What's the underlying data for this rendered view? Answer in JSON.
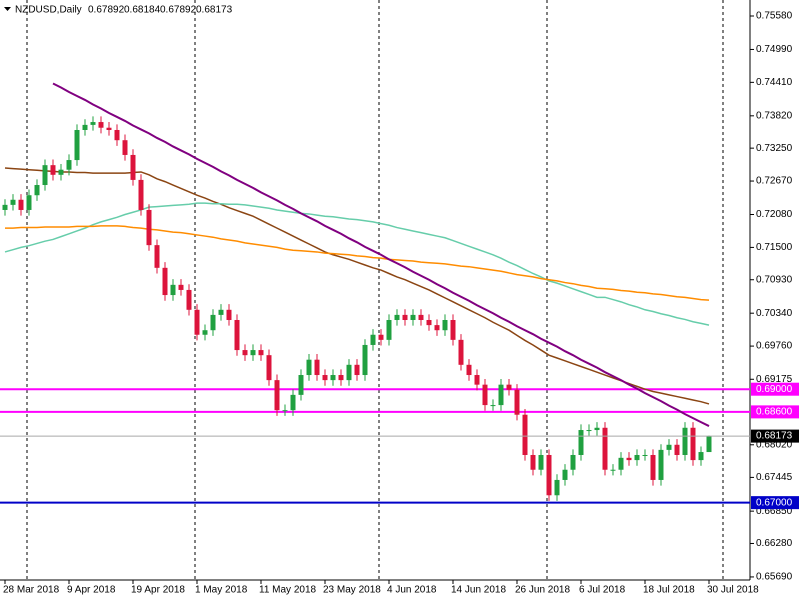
{
  "chart_data": {
    "type": "candlestick",
    "title": "NZDUSD,Daily",
    "categories": [
      "28 Mar 2018",
      null,
      null,
      null,
      null,
      null,
      null,
      null,
      "9 Apr 2018",
      null,
      null,
      null,
      null,
      null,
      null,
      null,
      "19 Apr 2018",
      null,
      null,
      null,
      null,
      null,
      null,
      null,
      "1 May 2018",
      null,
      null,
      null,
      null,
      null,
      null,
      null,
      "11 May 2018",
      null,
      null,
      null,
      null,
      null,
      null,
      null,
      "23 May 2018",
      null,
      null,
      null,
      null,
      null,
      null,
      null,
      "4 Jun 2018",
      null,
      null,
      null,
      null,
      null,
      null,
      null,
      "14 Jun 2018",
      null,
      null,
      null,
      null,
      null,
      null,
      null,
      "26 Jun 2018",
      null,
      null,
      null,
      null,
      null,
      null,
      null,
      "6 Jul 2018",
      null,
      null,
      null,
      null,
      null,
      null,
      null,
      "18 Jul 2018",
      null,
      null,
      null,
      null,
      null,
      null,
      null,
      "30 Jul 2018"
    ],
    "open": [
      0.7216,
      0.7225,
      0.7234,
      0.7216,
      0.7242,
      0.726,
      0.7295,
      0.7278,
      0.7287,
      0.7304,
      0.7357,
      0.7366,
      0.7371,
      0.7361,
      0.7357,
      0.7339,
      0.7313,
      0.7269,
      0.7216,
      0.7154,
      0.7114,
      0.7066,
      0.7084,
      0.7075,
      0.704,
      0.6996,
      0.7004,
      0.7031,
      0.704,
      0.7022,
      0.6969,
      0.696,
      0.6969,
      0.696,
      0.6916,
      0.6863,
      0.6863,
      0.689,
      0.6925,
      0.6952,
      0.6925,
      0.6916,
      0.6925,
      0.6916,
      0.6943,
      0.6925,
      0.6978,
      0.6996,
      0.6987,
      0.7022,
      0.7031,
      0.7022,
      0.7031,
      0.7022,
      0.7013,
      0.7004,
      0.7022,
      0.6987,
      0.6943,
      0.6925,
      0.6908,
      0.6872,
      0.6872,
      0.6908,
      0.6899,
      0.6855,
      0.6784,
      0.6758,
      0.6784,
      0.6713,
      0.674,
      0.6758,
      0.6784,
      0.6828,
      0.6828,
      0.6832,
      0.6758,
      0.6758,
      0.6779,
      0.6775,
      0.6784,
      0.6784,
      0.674,
      0.6793,
      0.6802,
      0.6784,
      0.6832,
      0.6775,
      0.67892
    ],
    "high": [
      0.7235,
      0.7244,
      0.7244,
      0.7252,
      0.727,
      0.7305,
      0.7305,
      0.7297,
      0.7314,
      0.7367,
      0.7376,
      0.7381,
      0.7381,
      0.7371,
      0.7367,
      0.7349,
      0.7323,
      0.7279,
      0.7226,
      0.7164,
      0.7124,
      0.7094,
      0.7094,
      0.7085,
      0.705,
      0.7014,
      0.7041,
      0.705,
      0.705,
      0.7032,
      0.6979,
      0.6979,
      0.6979,
      0.697,
      0.6926,
      0.6873,
      0.69,
      0.6935,
      0.6962,
      0.6962,
      0.6935,
      0.6935,
      0.6935,
      0.6953,
      0.6953,
      0.6988,
      0.7006,
      0.7006,
      0.7032,
      0.7041,
      0.7041,
      0.7041,
      0.7041,
      0.7032,
      0.7023,
      0.7032,
      0.7032,
      0.6997,
      0.6953,
      0.6935,
      0.6918,
      0.6882,
      0.6918,
      0.6918,
      0.6909,
      0.6865,
      0.6794,
      0.6794,
      0.6794,
      0.675,
      0.6768,
      0.6794,
      0.6838,
      0.6838,
      0.6842,
      0.6842,
      0.6768,
      0.6789,
      0.6789,
      0.6794,
      0.6794,
      0.6794,
      0.6803,
      0.6812,
      0.6812,
      0.6842,
      0.6842,
      0.6799,
      0.68184
    ],
    "low": [
      0.7206,
      0.7215,
      0.7206,
      0.7206,
      0.7232,
      0.725,
      0.7268,
      0.7268,
      0.7277,
      0.7294,
      0.7347,
      0.7356,
      0.7351,
      0.7347,
      0.7329,
      0.7303,
      0.7259,
      0.7206,
      0.7144,
      0.7104,
      0.7056,
      0.7056,
      0.7065,
      0.703,
      0.6986,
      0.6986,
      0.6994,
      0.7021,
      0.7012,
      0.6959,
      0.695,
      0.695,
      0.695,
      0.6906,
      0.6853,
      0.6853,
      0.6853,
      0.688,
      0.6915,
      0.6915,
      0.6906,
      0.6906,
      0.6906,
      0.6906,
      0.6915,
      0.6915,
      0.6968,
      0.6977,
      0.6977,
      0.7012,
      0.7012,
      0.7012,
      0.7012,
      0.7003,
      0.6994,
      0.6994,
      0.6977,
      0.6933,
      0.6915,
      0.6898,
      0.6862,
      0.6862,
      0.6862,
      0.6889,
      0.6845,
      0.6774,
      0.6748,
      0.6748,
      0.6703,
      0.6703,
      0.673,
      0.6748,
      0.6774,
      0.6818,
      0.6818,
      0.6748,
      0.6748,
      0.6748,
      0.6765,
      0.6765,
      0.6774,
      0.673,
      0.673,
      0.6783,
      0.6774,
      0.6774,
      0.6765,
      0.6765,
      0.67892
    ],
    "close": [
      0.7225,
      0.7234,
      0.7216,
      0.7242,
      0.726,
      0.7295,
      0.7278,
      0.7287,
      0.7304,
      0.7357,
      0.7366,
      0.7371,
      0.7361,
      0.7357,
      0.7339,
      0.7313,
      0.7269,
      0.7216,
      0.7154,
      0.7114,
      0.7066,
      0.7084,
      0.7075,
      0.704,
      0.6996,
      0.7004,
      0.7031,
      0.704,
      0.7022,
      0.6969,
      0.696,
      0.6969,
      0.696,
      0.6916,
      0.6863,
      0.6863,
      0.689,
      0.6925,
      0.6952,
      0.6925,
      0.6916,
      0.6925,
      0.6916,
      0.6943,
      0.6925,
      0.6978,
      0.6996,
      0.6987,
      0.7022,
      0.7031,
      0.7022,
      0.7031,
      0.7022,
      0.7013,
      0.7004,
      0.7022,
      0.6987,
      0.6943,
      0.6925,
      0.6908,
      0.6872,
      0.6872,
      0.6908,
      0.6899,
      0.6855,
      0.6784,
      0.6758,
      0.6784,
      0.6713,
      0.674,
      0.6758,
      0.6784,
      0.6828,
      0.6828,
      0.6832,
      0.6758,
      0.6758,
      0.6779,
      0.6775,
      0.6784,
      0.6784,
      0.674,
      0.6793,
      0.6802,
      0.6784,
      0.6832,
      0.6775,
      0.67892,
      0.68173
    ],
    "up_color": "#20a040",
    "down_color": "#dc143c",
    "series": [
      {
        "color": "#8b4513",
        "values": [
          0.729,
          0.7289,
          0.7288,
          0.7287,
          0.7286,
          0.7285,
          0.7284,
          0.7283,
          0.7283,
          0.7282,
          0.7282,
          0.7281,
          0.7281,
          0.7281,
          0.7281,
          0.7281,
          0.7282,
          0.7283,
          0.7278,
          0.7271,
          0.7266,
          0.726,
          0.7254,
          0.7248,
          0.7242,
          0.7237,
          0.7231,
          0.7226,
          0.722,
          0.7215,
          0.721,
          0.7205,
          0.7198,
          0.7191,
          0.7184,
          0.7177,
          0.717,
          0.7163,
          0.7156,
          0.7149,
          0.7142,
          0.7137,
          0.7133,
          0.7129,
          0.7124,
          0.7119,
          0.7114,
          0.711,
          0.7104,
          0.7098,
          0.7093,
          0.7087,
          0.7081,
          0.7075,
          0.7068,
          0.7061,
          0.7054,
          0.7047,
          0.704,
          0.7033,
          0.7026,
          0.7018,
          0.7011,
          0.7004,
          0.6995,
          0.6986,
          0.6978,
          0.6969,
          0.696,
          0.6955,
          0.695,
          0.6945,
          0.694,
          0.6935,
          0.693,
          0.6925,
          0.692,
          0.6915,
          0.691,
          0.6905,
          0.69,
          0.6896,
          0.6893,
          0.689,
          0.6887,
          0.6884,
          0.6881,
          0.6878,
          0.6874
        ]
      },
      {
        "color": "#66cdaa",
        "values": [
          0.7142,
          0.7146,
          0.715,
          0.7153,
          0.7157,
          0.7161,
          0.7164,
          0.7169,
          0.7174,
          0.7179,
          0.7184,
          0.719,
          0.7195,
          0.7199,
          0.7203,
          0.7208,
          0.7212,
          0.7216,
          0.7221,
          0.7222,
          0.7223,
          0.7224,
          0.7225,
          0.7226,
          0.7228,
          0.7228,
          0.7227,
          0.7227,
          0.7226,
          0.7226,
          0.7225,
          0.7223,
          0.7221,
          0.7219,
          0.7216,
          0.7214,
          0.7212,
          0.721,
          0.7209,
          0.7207,
          0.7205,
          0.7204,
          0.7202,
          0.72,
          0.7199,
          0.7197,
          0.7195,
          0.7192,
          0.7189,
          0.7185,
          0.7182,
          0.7179,
          0.7176,
          0.7173,
          0.717,
          0.7167,
          0.7162,
          0.7157,
          0.7152,
          0.7147,
          0.7142,
          0.7137,
          0.7131,
          0.7124,
          0.7118,
          0.7111,
          0.7104,
          0.7098,
          0.7091,
          0.7087,
          0.7082,
          0.7077,
          0.7072,
          0.7067,
          0.7062,
          0.7062,
          0.7058,
          0.7054,
          0.7049,
          0.7045,
          0.704,
          0.7037,
          0.7033,
          0.703,
          0.7026,
          0.7023,
          0.7019,
          0.7016,
          0.7013
        ]
      },
      {
        "color": "#ff8c00",
        "values": [
          0.7184,
          0.7184,
          0.7185,
          0.7185,
          0.7185,
          0.7186,
          0.7186,
          0.7186,
          0.7186,
          0.7187,
          0.7187,
          0.7187,
          0.7188,
          0.7188,
          0.7188,
          0.7187,
          0.7185,
          0.7184,
          0.7182,
          0.7181,
          0.7179,
          0.7177,
          0.7176,
          0.7174,
          0.7172,
          0.717,
          0.7168,
          0.7165,
          0.7163,
          0.7161,
          0.7158,
          0.7156,
          0.7154,
          0.7152,
          0.715,
          0.7147,
          0.7145,
          0.7144,
          0.7143,
          0.7142,
          0.714,
          0.7139,
          0.7138,
          0.7137,
          0.7135,
          0.7134,
          0.7132,
          0.7131,
          0.7129,
          0.7128,
          0.7127,
          0.7126,
          0.7124,
          0.7123,
          0.7122,
          0.7121,
          0.7119,
          0.7117,
          0.7116,
          0.7114,
          0.7112,
          0.711,
          0.7108,
          0.7105,
          0.7102,
          0.71,
          0.7098,
          0.7095,
          0.7093,
          0.7091,
          0.7088,
          0.7086,
          0.7083,
          0.7081,
          0.7078,
          0.7077,
          0.7076,
          0.7074,
          0.7073,
          0.7071,
          0.707,
          0.7068,
          0.7067,
          0.7065,
          0.7063,
          0.7062,
          0.706,
          0.7058,
          0.7057
        ]
      },
      {
        "color": "#800080",
        "values": [
          null,
          null,
          null,
          null,
          null,
          null,
          0.7439,
          0.7432,
          0.7424,
          0.7417,
          0.741,
          0.7402,
          0.7395,
          0.7387,
          0.738,
          0.7373,
          0.7365,
          0.7358,
          0.7351,
          0.7343,
          0.7336,
          0.7328,
          0.7321,
          0.7314,
          0.7306,
          0.7299,
          0.7292,
          0.7284,
          0.7277,
          0.7269,
          0.7262,
          0.7255,
          0.7247,
          0.724,
          0.7233,
          0.7225,
          0.7218,
          0.721,
          0.7203,
          0.7196,
          0.7188,
          0.7181,
          0.7174,
          0.7166,
          0.7159,
          0.7151,
          0.7144,
          0.7137,
          0.7129,
          0.7122,
          0.7115,
          0.7107,
          0.71,
          0.7093,
          0.7085,
          0.7078,
          0.707,
          0.7063,
          0.7056,
          0.7048,
          0.7041,
          0.7034,
          0.7026,
          0.7019,
          0.7011,
          0.7004,
          0.6997,
          0.6989,
          0.6982,
          0.6975,
          0.6967,
          0.696,
          0.6952,
          0.6945,
          0.6938,
          0.693,
          0.6923,
          0.6916,
          0.6908,
          0.6901,
          0.6893,
          0.6886,
          0.6879,
          0.6871,
          0.6864,
          0.6856,
          0.6849,
          0.6842,
          0.6835
        ]
      }
    ],
    "levels": [
      {
        "value": 0.69,
        "label": "0.69000",
        "color": "#ff00ff"
      },
      {
        "value": 0.686,
        "label": "0.68600",
        "color": "#ff00ff"
      },
      {
        "value": 0.67,
        "label": "0.67000",
        "color": "#0000c8"
      }
    ],
    "price_line_color": "#a9a9a9",
    "ylim": [
      0.65636,
      0.75862
    ],
    "yticks": [
      {
        "value": 0.7558,
        "label": "0.75580"
      },
      {
        "value": 0.7499,
        "label": "0.74990"
      },
      {
        "value": 0.7441,
        "label": "0.74410"
      },
      {
        "value": 0.7382,
        "label": "0.73820"
      },
      {
        "value": 0.7325,
        "label": "0.73250"
      },
      {
        "value": 0.7267,
        "label": "0.72670"
      },
      {
        "value": 0.7208,
        "label": "0.72080"
      },
      {
        "value": 0.715,
        "label": "0.71500"
      },
      {
        "value": 0.7093,
        "label": "0.70930"
      },
      {
        "value": 0.7034,
        "label": "0.70340"
      },
      {
        "value": 0.6976,
        "label": "0.69760"
      },
      {
        "value": 0.69175,
        "label": "0.69175"
      },
      {
        "value": 0.6802,
        "label": "0.68020"
      },
      {
        "value": 0.67445,
        "label": "0.67445"
      },
      {
        "value": 0.6685,
        "label": "0.66850"
      },
      {
        "value": 0.6628,
        "label": "0.66280"
      },
      {
        "value": 0.6569,
        "label": "0.65690"
      }
    ]
  }
}
